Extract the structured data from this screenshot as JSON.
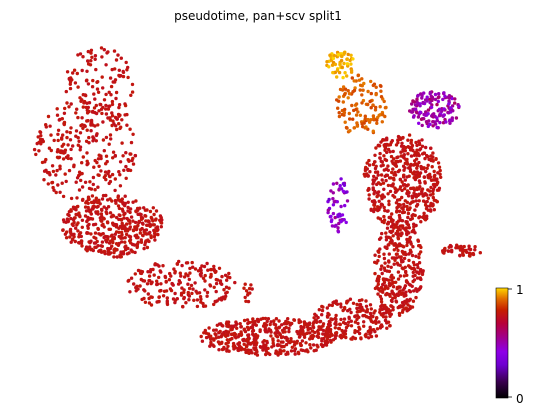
{
  "chart_data": {
    "type": "scatter",
    "title": "pseudotime, pan+scv split1",
    "xlabel": "",
    "ylabel": "",
    "axes_visible": false,
    "grid": false,
    "colormap": "gnuplot",
    "colorbar": {
      "min": 0,
      "max": 1,
      "tick_labels": [
        "1",
        "0"
      ],
      "placement": "right"
    },
    "point_color_hex": {
      "low": "#000000",
      "mid_low": "#7a00ff",
      "mid": "#a0008c",
      "mid_high": "#c41e00",
      "high": "#ffd700"
    },
    "regions": [
      {
        "name": "left-arm-top",
        "cx": 1.5,
        "cy": 8.6,
        "rx": 0.8,
        "ry": 1.2,
        "n": 120,
        "v": [
          0.74,
          0.78
        ]
      },
      {
        "name": "left-arm-mid",
        "cx": 1.2,
        "cy": 6.8,
        "rx": 1.1,
        "ry": 1.5,
        "n": 260,
        "v": [
          0.74,
          0.78
        ]
      },
      {
        "name": "left-arm-dense",
        "cx": 1.8,
        "cy": 4.6,
        "rx": 1.1,
        "ry": 0.9,
        "n": 420,
        "v": [
          0.74,
          0.78
        ]
      },
      {
        "name": "bottom-left-curve",
        "cx": 3.3,
        "cy": 2.9,
        "rx": 1.2,
        "ry": 0.7,
        "n": 200,
        "v": [
          0.74,
          0.78
        ]
      },
      {
        "name": "bottom-middle",
        "cx": 5.2,
        "cy": 1.4,
        "rx": 1.5,
        "ry": 0.55,
        "n": 420,
        "v": [
          0.74,
          0.78
        ]
      },
      {
        "name": "bottom-right-curve",
        "cx": 7.0,
        "cy": 1.9,
        "rx": 0.9,
        "ry": 0.6,
        "n": 200,
        "v": [
          0.74,
          0.78
        ]
      },
      {
        "name": "right-arm-lower",
        "cx": 8.0,
        "cy": 3.4,
        "rx": 0.55,
        "ry": 1.4,
        "n": 320,
        "v": [
          0.74,
          0.78
        ]
      },
      {
        "name": "right-arm-upper",
        "cx": 8.1,
        "cy": 5.9,
        "rx": 0.85,
        "ry": 1.4,
        "n": 480,
        "v": [
          0.74,
          0.78
        ]
      },
      {
        "name": "right-spur",
        "cx": 9.4,
        "cy": 3.9,
        "rx": 0.45,
        "ry": 0.18,
        "n": 45,
        "v": [
          0.74,
          0.78
        ]
      },
      {
        "name": "purple-streak",
        "cx": 6.7,
        "cy": 5.2,
        "rx": 0.25,
        "ry": 0.8,
        "n": 55,
        "v": [
          0.3,
          0.55
        ]
      },
      {
        "name": "magenta-cluster",
        "cx": 8.8,
        "cy": 8.0,
        "rx": 0.55,
        "ry": 0.55,
        "n": 140,
        "v": [
          0.42,
          0.62
        ]
      },
      {
        "name": "orange-branch",
        "cx": 7.2,
        "cy": 8.1,
        "rx": 0.55,
        "ry": 0.9,
        "n": 120,
        "v": [
          0.84,
          0.92
        ]
      },
      {
        "name": "yellow-tip",
        "cx": 6.75,
        "cy": 9.3,
        "rx": 0.3,
        "ry": 0.4,
        "n": 60,
        "v": [
          0.93,
          1.0
        ]
      },
      {
        "name": "small-island",
        "cx": 4.75,
        "cy": 2.7,
        "rx": 0.15,
        "ry": 0.3,
        "n": 12,
        "v": [
          0.74,
          0.78
        ]
      }
    ],
    "xlim": [
      0,
      10
    ],
    "ylim": [
      0,
      10
    ]
  }
}
